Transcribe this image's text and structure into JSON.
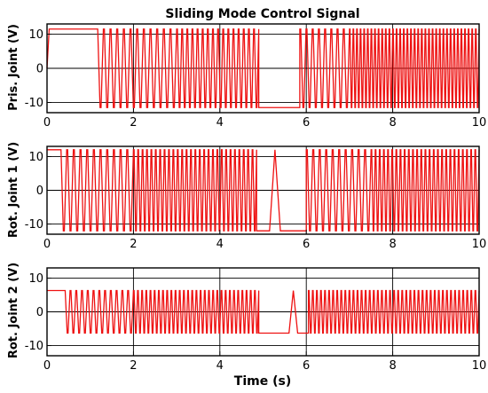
{
  "figure": {
    "title": "Sliding Mode Control Signal",
    "xlabel": "Time (s)"
  },
  "chart_data": [
    {
      "type": "line",
      "ylabel": "Pris. Joint (V)",
      "xlim": [
        0,
        10
      ],
      "ylim": [
        -13,
        13
      ],
      "xticks": [
        "0",
        "2",
        "4",
        "6",
        "8",
        "10"
      ],
      "yticks": [
        "-10",
        "0",
        "10"
      ],
      "grid": true,
      "series": [
        {
          "color": "#ee1111",
          "amplitude": 11.5,
          "segments": [
            {
              "type": "ramp",
              "t0": 0.0,
              "t1": 0.05,
              "v0": 0,
              "v1": 11.5
            },
            {
              "type": "hold",
              "t0": 0.05,
              "t1": 1.15,
              "v": 11.5
            },
            {
              "type": "oscillate",
              "t0": 1.15,
              "t1": 3.0,
              "cycles": 12
            },
            {
              "type": "oscillate",
              "t0": 3.0,
              "t1": 4.9,
              "cycles": 16
            },
            {
              "type": "hold",
              "t0": 4.9,
              "t1": 5.85,
              "v": -11.5
            },
            {
              "type": "oscillate",
              "t0": 5.85,
              "t1": 7.0,
              "cycles": 8
            },
            {
              "type": "oscillate",
              "t0": 7.0,
              "t1": 10.0,
              "cycles": 36
            }
          ]
        }
      ]
    },
    {
      "type": "line",
      "ylabel": "Rot. Joint 1 (V)",
      "xlim": [
        0,
        10
      ],
      "ylim": [
        -13,
        13
      ],
      "xticks": [
        "0",
        "2",
        "4",
        "6",
        "8",
        "10"
      ],
      "yticks": [
        "-10",
        "0",
        "10"
      ],
      "grid": true,
      "series": [
        {
          "color": "#ee1111",
          "amplitude": 12,
          "segments": [
            {
              "type": "hold",
              "t0": 0.0,
              "t1": 0.3,
              "v": 12
            },
            {
              "type": "oscillate",
              "t0": 0.3,
              "t1": 2.0,
              "cycles": 11
            },
            {
              "type": "oscillate",
              "t0": 2.0,
              "t1": 4.85,
              "cycles": 28
            },
            {
              "type": "hold",
              "t0": 4.85,
              "t1": 5.15,
              "v": -12
            },
            {
              "type": "spike",
              "t0": 5.15,
              "t1": 5.4,
              "peak": 12,
              "base": -12
            },
            {
              "type": "hold",
              "t0": 5.4,
              "t1": 6.0,
              "v": -12
            },
            {
              "type": "oscillate",
              "t0": 6.0,
              "t1": 7.5,
              "cycles": 10
            },
            {
              "type": "oscillate",
              "t0": 7.5,
              "t1": 10.0,
              "cycles": 26
            }
          ]
        }
      ]
    },
    {
      "type": "line",
      "ylabel": "Rot. Joint 2 (V)",
      "xlim": [
        0,
        10
      ],
      "ylim": [
        -13,
        13
      ],
      "xticks": [
        "0",
        "2",
        "4",
        "6",
        "8",
        "10"
      ],
      "yticks": [
        "-10",
        "0",
        "10"
      ],
      "grid": true,
      "series": [
        {
          "color": "#ee1111",
          "amplitude": 6.3,
          "segments": [
            {
              "type": "hold",
              "t0": 0.0,
              "t1": 0.4,
              "v": 6.3
            },
            {
              "type": "oscillate",
              "t0": 0.4,
              "t1": 2.0,
              "cycles": 12
            },
            {
              "type": "oscillate",
              "t0": 2.0,
              "t1": 4.9,
              "cycles": 30
            },
            {
              "type": "hold",
              "t0": 4.9,
              "t1": 5.6,
              "v": -6.3
            },
            {
              "type": "spike",
              "t0": 5.6,
              "t1": 5.8,
              "peak": 6.3,
              "base": -6.3
            },
            {
              "type": "hold",
              "t0": 5.8,
              "t1": 6.05,
              "v": -6.3
            },
            {
              "type": "oscillate",
              "t0": 6.05,
              "t1": 10.0,
              "cycles": 42
            }
          ]
        }
      ]
    }
  ]
}
